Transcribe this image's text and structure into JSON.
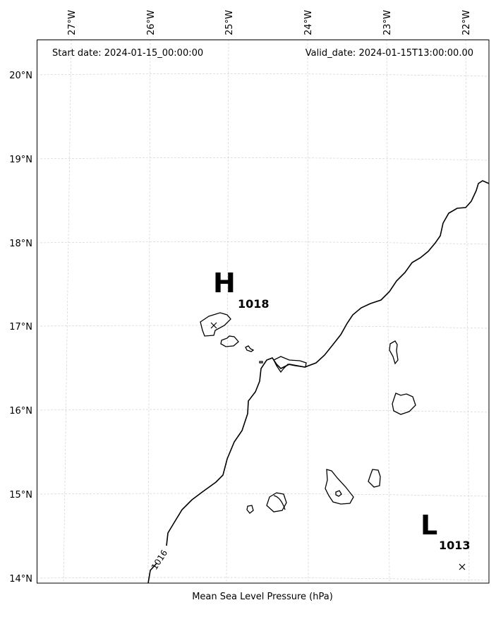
{
  "header": {
    "start_date": "Start date: 2024-01-15_00:00:00",
    "valid_date": "Valid_date: 2024-01-15T13:00:00.00"
  },
  "axes": {
    "lon_labels": [
      "27°W",
      "26°W",
      "25°W",
      "24°W",
      "23°W",
      "22°W"
    ],
    "lat_labels": [
      "20°N",
      "19°N",
      "18°N",
      "17°N",
      "16°N",
      "15°N",
      "14°N"
    ],
    "xlabel": "Mean Sea Level Pressure (hPa)"
  },
  "pressure_centers": [
    {
      "type": "H",
      "value": "1018"
    },
    {
      "type": "L",
      "value": "1013"
    }
  ],
  "contours": [
    {
      "label": "1016"
    }
  ]
}
